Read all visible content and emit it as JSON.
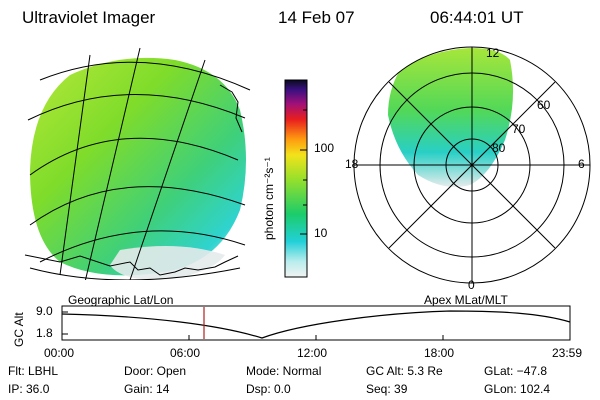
{
  "header": {
    "title": "Ultraviolet Imager",
    "date": "14 Feb 07",
    "time": "06:44:01 UT"
  },
  "colorbar": {
    "unit_label": "photon cm⁻²s⁻¹",
    "ticks": [
      "100",
      "10"
    ]
  },
  "polar_plot": {
    "hour_labels": {
      "top": "12",
      "left": "18",
      "right": "6",
      "bottom": "0"
    },
    "lat_labels": [
      "60",
      "70",
      "80"
    ]
  },
  "timeline": {
    "y_axis_label": "GC Alt",
    "y_ticks": [
      "9.0",
      "1.8"
    ],
    "left_label": "Geographic Lat/Lon",
    "right_label": "Apex  MLat/MLT",
    "x_ticks": [
      "00:00",
      "06:00",
      "12:00",
      "18:00",
      "23:59"
    ],
    "current_time_fraction": 0.279
  },
  "info": {
    "filter": "Flt: LBHL",
    "ip": "IP: 36.0",
    "door": "Door: Open",
    "gain": "Gain: 14",
    "mode": "Mode: Normal",
    "dsp": "Dsp:    0.0",
    "gc_alt": "GC Alt: 5.3 Re",
    "seq": "Seq: 39",
    "glat": "GLat: −47.8",
    "glon": "GLon: 102.4"
  },
  "colors": {
    "auroral_green": "#7fdc2a",
    "auroral_cyan": "#2fd3cf",
    "grid_line": "#000000",
    "time_marker": "#b02020"
  }
}
